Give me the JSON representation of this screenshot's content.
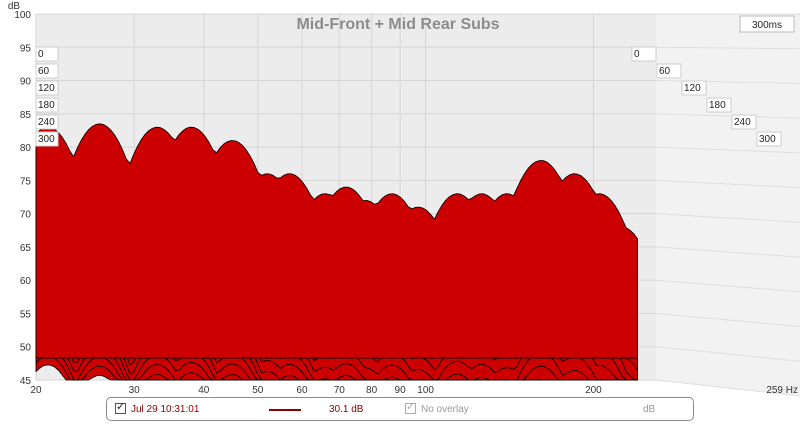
{
  "chart_data": {
    "type": "waterfall",
    "title": "Mid-Front + Mid Rear Subs",
    "ylabel": "dB",
    "y_ticks": [
      "45",
      "50",
      "55",
      "60",
      "65",
      "70",
      "75",
      "80",
      "85",
      "90",
      "95",
      "100"
    ],
    "ylim": [
      45,
      100
    ],
    "x_ticks": [
      "20",
      "30",
      "40",
      "50",
      "60",
      "70",
      "80",
      "90",
      "100",
      "200"
    ],
    "x_unit_label": "259 Hz",
    "xlim": [
      20,
      259
    ],
    "x_scale": "log",
    "time_labels": [
      "0",
      "60",
      "120",
      "180",
      "240",
      "300"
    ],
    "time_end_label": "300ms",
    "time_range_ms": [
      0,
      300
    ],
    "fill_color": "#cc0000",
    "edge_color": "#000000",
    "grid": true,
    "peaks_hz": [
      21,
      26,
      33,
      38,
      45,
      52,
      57,
      66,
      72,
      78,
      87,
      97,
      114,
      126,
      140,
      161,
      185,
      205,
      225
    ],
    "front_slice_db": [
      83,
      83.5,
      83,
      83,
      81,
      76,
      76,
      73,
      74,
      72,
      73,
      71,
      73,
      73,
      73,
      78,
      76,
      73,
      68
    ]
  },
  "legend": {
    "series_label": "Jul 29 10:31:01",
    "series_value": "30.1 dB",
    "overlay_label": "No overlay",
    "unit_label": "dB",
    "series_color": "#8b0000"
  }
}
